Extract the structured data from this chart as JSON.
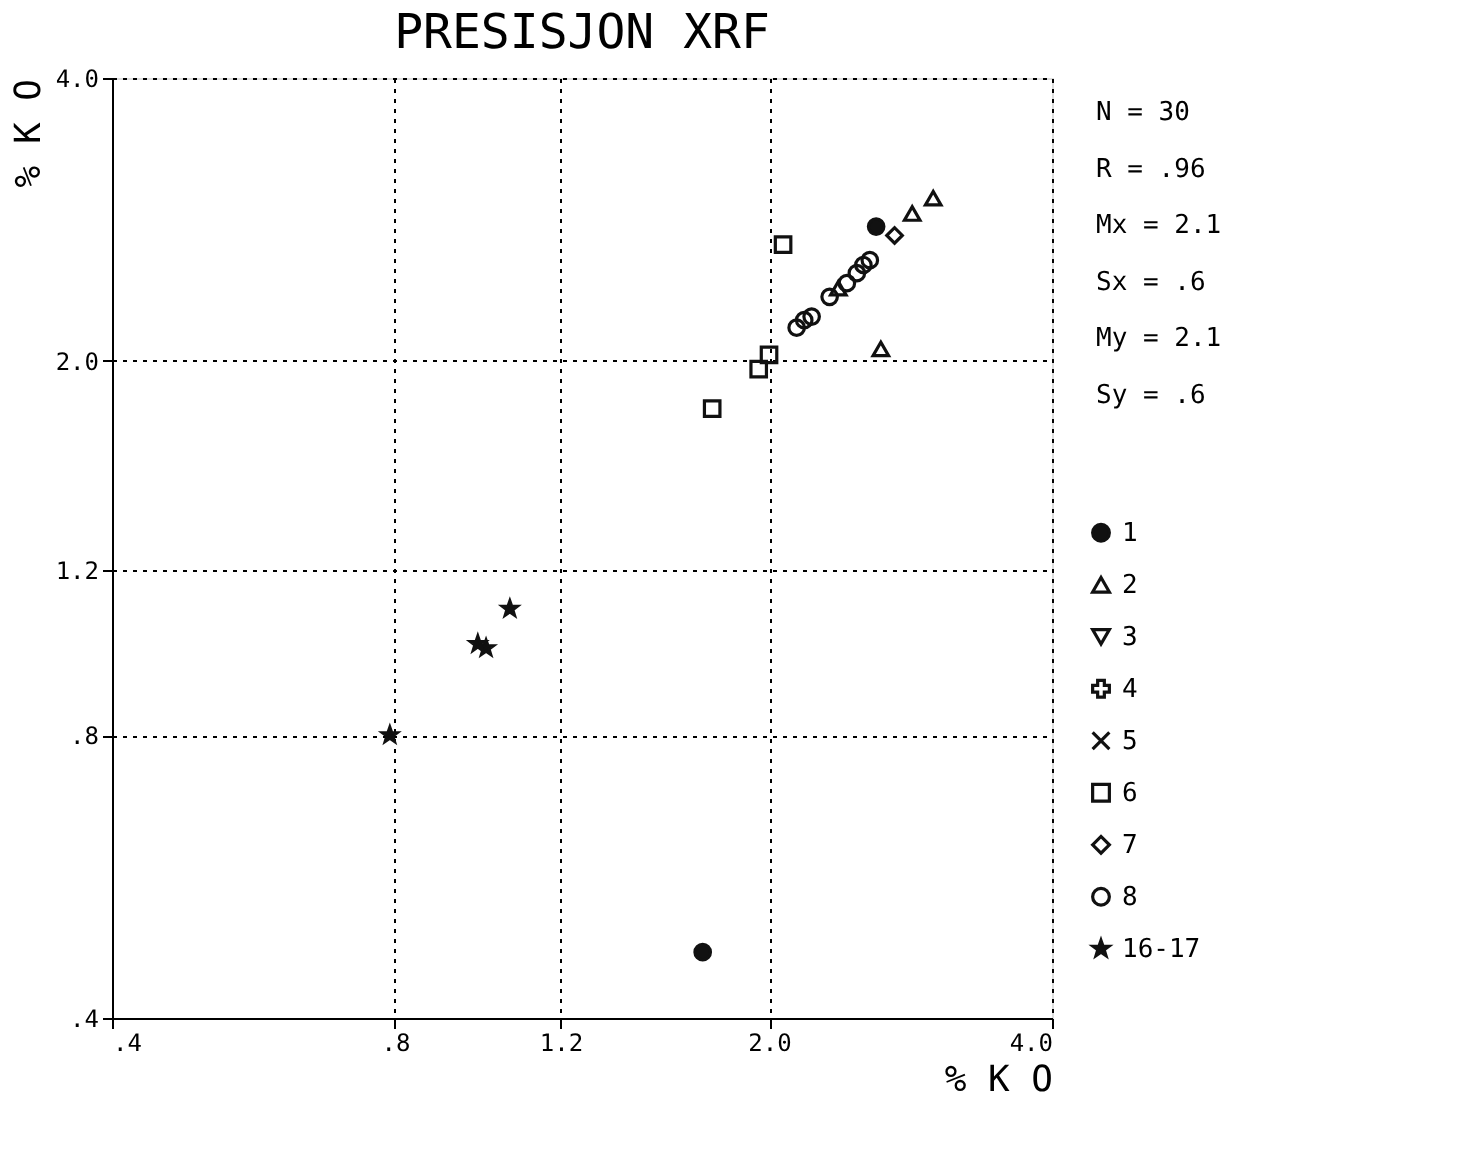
{
  "chart_data": {
    "type": "scatter",
    "title": "PRESISJON XRF",
    "xlabel": "% K O",
    "ylabel": "% K O",
    "log": "xy",
    "xlim": [
      0.4,
      4.0
    ],
    "ylim": [
      0.4,
      4.0
    ],
    "xticks": [
      {
        "value": 0.4,
        "label": ".4"
      },
      {
        "value": 0.8,
        "label": ".8"
      },
      {
        "value": 1.2,
        "label": "1.2"
      },
      {
        "value": 2.0,
        "label": "2.0"
      },
      {
        "value": 4.0,
        "label": "4.0"
      }
    ],
    "yticks": [
      {
        "value": 0.4,
        "label": ".4"
      },
      {
        "value": 0.8,
        "label": ".8"
      },
      {
        "value": 1.2,
        "label": "1.2"
      },
      {
        "value": 2.0,
        "label": "2.0"
      },
      {
        "value": 4.0,
        "label": "4.0"
      }
    ],
    "grid": true,
    "legend": "right",
    "annotations": [
      "N = 30",
      "R = .96",
      "Mx = 2.1",
      "Sx = .6",
      "My = 2.1",
      "Sy = .6"
    ],
    "series": [
      {
        "name": "1",
        "color": "#111111",
        "marker": "circle",
        "x": [
          2.6,
          1.7
        ],
        "values": [
          2.78,
          0.47
        ]
      },
      {
        "name": "2",
        "color": "#111111",
        "marker": "triangle",
        "x": [
          2.37,
          2.84,
          2.99,
          2.63
        ],
        "values": [
          2.39,
          2.87,
          2.98,
          2.06
        ]
      },
      {
        "name": "3",
        "color": "#111111",
        "marker": "triangle"
      },
      {
        "name": "4",
        "color": "#111111",
        "marker": "cross"
      },
      {
        "name": "5",
        "color": "#111111",
        "marker": "cross"
      },
      {
        "name": "6",
        "color": "#111111",
        "marker": "square",
        "x": [
          1.74,
          1.95,
          2.0,
          2.07
        ],
        "values": [
          1.78,
          1.96,
          2.03,
          2.66
        ]
      },
      {
        "name": "7",
        "color": "#111111",
        "marker": "diamond",
        "x": [
          2.72
        ],
        "values": [
          2.72
        ]
      },
      {
        "name": "8",
        "color": "#111111",
        "marker": "circle",
        "x": [
          2.14,
          2.18,
          2.22,
          2.32,
          2.42,
          2.48,
          2.52,
          2.56
        ],
        "values": [
          2.17,
          2.21,
          2.23,
          2.34,
          2.42,
          2.48,
          2.53,
          2.56
        ]
      },
      {
        "name": "16-17",
        "color": "#111111",
        "marker": "star",
        "x": [
          1.06,
          1.0,
          0.98,
          0.79
        ],
        "values": [
          1.09,
          0.99,
          1.0,
          0.8
        ]
      }
    ]
  }
}
